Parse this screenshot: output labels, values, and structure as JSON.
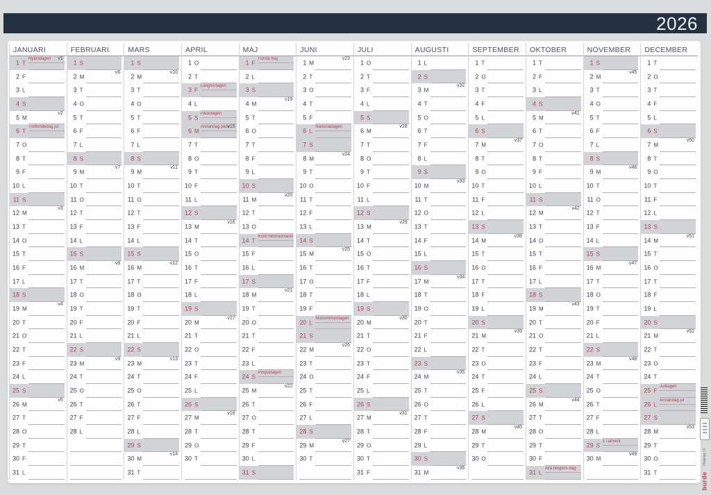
{
  "year": "2026",
  "side_strip": {
    "price_group": "Prisgrupp 13",
    "brand": "burde"
  },
  "colors": {
    "background": "#dadbdd",
    "banner_navy": "#243140",
    "highlight_gray": "#d2d3d6",
    "day_red": "#aa4459",
    "holiday_red": "#bc3950",
    "ink": "#3a3f46",
    "writing_line": "#aeb0b3",
    "brand_red": "#c23a50"
  },
  "months": [
    {
      "name": "JANUARI",
      "days": [
        "1 T",
        "2 F",
        "3 L",
        "4 S",
        "5 M",
        "6 T",
        "7 O",
        "8 T",
        "9 F",
        "10 L",
        "11 S",
        "12 M",
        "13 T",
        "14 O",
        "15 T",
        "16 F",
        "17 L",
        "18 S",
        "19 M",
        "20 T",
        "21 O",
        "22 T",
        "23 F",
        "24 L",
        "25 S",
        "26 M",
        "27 T",
        "28 O",
        "29 T",
        "30 F",
        "31 L"
      ],
      "highlighted": [
        1,
        4,
        6,
        11,
        18,
        25
      ],
      "holidays": {
        "1": "Nyårsdagen",
        "6": "Trettondedag jul"
      },
      "weeks": {
        "1": "v1",
        "5": "v2",
        "12": "v3",
        "19": "v4",
        "26": "v5"
      }
    },
    {
      "name": "FEBRUARI",
      "days": [
        "1 S",
        "2 M",
        "3 T",
        "4 O",
        "5 T",
        "6 F",
        "7 L",
        "8 S",
        "9 M",
        "10 T",
        "11 O",
        "12 T",
        "13 F",
        "14 L",
        "15 S",
        "16 M",
        "17 T",
        "18 O",
        "19 T",
        "20 F",
        "21 L",
        "22 S",
        "23 M",
        "24 T",
        "25 O",
        "26 T",
        "27 F",
        "28 L"
      ],
      "highlighted": [
        1,
        8,
        15,
        22
      ],
      "holidays": {},
      "weeks": {
        "2": "v6",
        "9": "v7",
        "16": "v8",
        "23": "v9"
      }
    },
    {
      "name": "MARS",
      "days": [
        "1 S",
        "2 M",
        "3 T",
        "4 O",
        "5 T",
        "6 F",
        "7 L",
        "8 S",
        "9 M",
        "10 T",
        "11 O",
        "12 T",
        "13 F",
        "14 L",
        "15 S",
        "16 M",
        "17 T",
        "18 O",
        "19 T",
        "20 F",
        "21 L",
        "22 S",
        "23 M",
        "24 T",
        "25 O",
        "26 T",
        "27 F",
        "28 L",
        "29 S",
        "30 M",
        "31 T"
      ],
      "highlighted": [
        1,
        8,
        15,
        22,
        29
      ],
      "holidays": {},
      "weeks": {
        "2": "v10",
        "9": "v11",
        "16": "v12",
        "23": "v13",
        "30": "v14"
      }
    },
    {
      "name": "APRIL",
      "days": [
        "1 O",
        "2 T",
        "3 F",
        "4 L",
        "5 S",
        "6 M",
        "7 T",
        "8 O",
        "9 T",
        "10 F",
        "11 L",
        "12 S",
        "13 M",
        "14 T",
        "15 O",
        "16 T",
        "17 F",
        "18 L",
        "19 S",
        "20 M",
        "21 T",
        "22 O",
        "23 T",
        "24 F",
        "25 L",
        "26 S",
        "27 M",
        "28 T",
        "29 O",
        "30 T"
      ],
      "highlighted": [
        3,
        5,
        6,
        12,
        19,
        26
      ],
      "holidays": {
        "3": "Långfredagen",
        "5": "Påskdagen",
        "6": "Annandag påsk"
      },
      "weeks": {
        "6": "v15",
        "13": "v16",
        "20": "v17",
        "27": "v18"
      }
    },
    {
      "name": "MAJ",
      "days": [
        "1 F",
        "2 L",
        "3 S",
        "4 M",
        "5 T",
        "6 O",
        "7 T",
        "8 F",
        "9 L",
        "10 S",
        "11 M",
        "12 T",
        "13 O",
        "14 T",
        "15 F",
        "16 L",
        "17 S",
        "18 M",
        "19 T",
        "20 O",
        "21 T",
        "22 F",
        "23 L",
        "24 S",
        "25 M",
        "26 T",
        "27 O",
        "28 T",
        "29 F",
        "30 L",
        "31 S"
      ],
      "highlighted": [
        1,
        3,
        10,
        14,
        17,
        24,
        31
      ],
      "holidays": {
        "1": "Första maj",
        "14": "Kristi himmelsfärds d.",
        "24": "Pingstdagen"
      },
      "weeks": {
        "4": "v19",
        "11": "v20",
        "18": "v21",
        "25": "v22"
      }
    },
    {
      "name": "JUNI",
      "days": [
        "1 M",
        "2 T",
        "3 O",
        "4 T",
        "5 F",
        "6 L",
        "7 S",
        "8 M",
        "9 T",
        "10 O",
        "11 T",
        "12 F",
        "13 L",
        "14 S",
        "15 M",
        "16 T",
        "17 O",
        "18 T",
        "19 F",
        "20 L",
        "21 S",
        "22 M",
        "23 T",
        "24 O",
        "25 T",
        "26 F",
        "27 L",
        "28 S",
        "29 M",
        "30 T"
      ],
      "highlighted": [
        6,
        7,
        14,
        20,
        21,
        28
      ],
      "holidays": {
        "6": "Nationaldagen",
        "20": "Midsommardagen"
      },
      "weeks": {
        "1": "v23",
        "8": "v24",
        "15": "v25",
        "22": "v26",
        "29": "v27"
      }
    },
    {
      "name": "JULI",
      "days": [
        "1 O",
        "2 T",
        "3 F",
        "4 L",
        "5 S",
        "6 M",
        "7 T",
        "8 O",
        "9 T",
        "10 F",
        "11 L",
        "12 S",
        "13 M",
        "14 T",
        "15 O",
        "16 T",
        "17 F",
        "18 L",
        "19 S",
        "20 M",
        "21 T",
        "22 O",
        "23 T",
        "24 F",
        "25 L",
        "26 S",
        "27 M",
        "28 T",
        "29 O",
        "30 T",
        "31 F"
      ],
      "highlighted": [
        5,
        12,
        19,
        26
      ],
      "holidays": {},
      "weeks": {
        "6": "v28",
        "13": "v29",
        "20": "v30",
        "27": "v31"
      }
    },
    {
      "name": "AUGUSTI",
      "days": [
        "1 L",
        "2 S",
        "3 M",
        "4 T",
        "5 O",
        "6 T",
        "7 F",
        "8 L",
        "9 S",
        "10 M",
        "11 T",
        "12 O",
        "13 T",
        "14 F",
        "15 L",
        "16 S",
        "17 M",
        "18 T",
        "19 O",
        "20 T",
        "21 F",
        "22 L",
        "23 S",
        "24 M",
        "25 T",
        "26 O",
        "27 T",
        "28 F",
        "29 L",
        "30 S",
        "31 M"
      ],
      "highlighted": [
        2,
        9,
        16,
        23,
        30
      ],
      "holidays": {},
      "weeks": {
        "3": "v32",
        "10": "v33",
        "17": "v34",
        "24": "v35",
        "31": "v36"
      }
    },
    {
      "name": "SEPTEMBER",
      "days": [
        "1 T",
        "2 O",
        "3 T",
        "4 F",
        "5 L",
        "6 S",
        "7 M",
        "8 T",
        "9 O",
        "10 T",
        "11 F",
        "12 L",
        "13 S",
        "14 M",
        "15 T",
        "16 O",
        "17 T",
        "18 F",
        "19 L",
        "20 S",
        "21 M",
        "22 T",
        "23 O",
        "24 T",
        "25 F",
        "26 L",
        "27 S",
        "28 M",
        "29 T",
        "30 O"
      ],
      "highlighted": [
        6,
        13,
        20,
        27
      ],
      "holidays": {},
      "weeks": {
        "7": "v37",
        "14": "v38",
        "21": "v39",
        "28": "v40"
      }
    },
    {
      "name": "OKTOBER",
      "days": [
        "1 T",
        "2 F",
        "3 L",
        "4 S",
        "5 M",
        "6 T",
        "7 O",
        "8 T",
        "9 F",
        "10 L",
        "11 S",
        "12 M",
        "13 T",
        "14 O",
        "15 T",
        "16 F",
        "17 L",
        "18 S",
        "19 M",
        "20 T",
        "21 O",
        "22 T",
        "23 F",
        "24 L",
        "25 S",
        "26 M",
        "27 T",
        "28 O",
        "29 T",
        "30 F",
        "31 L"
      ],
      "highlighted": [
        4,
        11,
        18,
        25,
        31
      ],
      "holidays": {
        "31": "Alla helgons dag"
      },
      "weeks": {
        "5": "v41",
        "12": "v42",
        "19": "v43",
        "26": "v44"
      }
    },
    {
      "name": "NOVEMBER",
      "days": [
        "1 S",
        "2 M",
        "3 T",
        "4 O",
        "5 T",
        "6 F",
        "7 L",
        "8 S",
        "9 M",
        "10 T",
        "11 O",
        "12 T",
        "13 F",
        "14 L",
        "15 S",
        "16 M",
        "17 T",
        "18 O",
        "19 T",
        "20 F",
        "21 L",
        "22 S",
        "23 M",
        "24 T",
        "25 O",
        "26 T",
        "27 F",
        "28 L",
        "29 S",
        "30 M"
      ],
      "highlighted": [
        1,
        8,
        15,
        22,
        29
      ],
      "holidays": {
        "29": "1 i advent"
      },
      "weeks": {
        "2": "v45",
        "9": "v46",
        "16": "v47",
        "23": "v48",
        "30": "v49"
      }
    },
    {
      "name": "DECEMBER",
      "days": [
        "1 T",
        "2 O",
        "3 T",
        "4 F",
        "5 L",
        "6 S",
        "7 M",
        "8 T",
        "9 O",
        "10 T",
        "11 F",
        "12 L",
        "13 S",
        "14 M",
        "15 T",
        "16 O",
        "17 T",
        "18 F",
        "19 L",
        "20 S",
        "21 M",
        "22 T",
        "23 O",
        "24 T",
        "25 F",
        "26 L",
        "27 S",
        "28 M",
        "29 T",
        "30 O",
        "31 T"
      ],
      "highlighted": [
        6,
        13,
        20,
        25,
        26,
        27
      ],
      "holidays": {
        "25": "Juldagen",
        "26": "Annandag jul"
      },
      "weeks": {
        "7": "v50",
        "14": "v51",
        "21": "v52",
        "28": "v53"
      }
    }
  ]
}
